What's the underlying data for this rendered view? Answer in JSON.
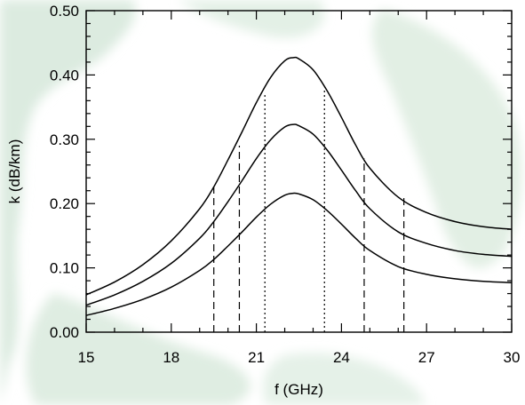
{
  "chart_data": {
    "type": "line",
    "xlabel": "f (GHz)",
    "ylabel": "k (dB/km)",
    "xlim": [
      15,
      30
    ],
    "ylim": [
      0.0,
      0.5
    ],
    "xticks": [
      15,
      18,
      21,
      24,
      27,
      30
    ],
    "xtick_labels": [
      "15",
      "18",
      "21",
      "24",
      "27",
      "30"
    ],
    "yticks": [
      0.0,
      0.1,
      0.2,
      0.3,
      0.4,
      0.5
    ],
    "ytick_labels": [
      "0.00",
      "0.10",
      "0.20",
      "0.30",
      "0.40",
      "0.50"
    ],
    "grid": false,
    "series": [
      {
        "x": [
          15,
          16,
          17,
          18,
          19,
          19.5,
          20,
          20.5,
          21,
          21.5,
          22,
          22.3,
          22.5,
          23,
          23.5,
          24,
          24.5,
          25,
          26,
          27,
          28,
          29,
          30
        ],
        "values": [
          0.058,
          0.078,
          0.105,
          0.142,
          0.192,
          0.226,
          0.268,
          0.312,
          0.357,
          0.396,
          0.422,
          0.427,
          0.425,
          0.408,
          0.375,
          0.334,
          0.291,
          0.255,
          0.21,
          0.186,
          0.172,
          0.164,
          0.16
        ]
      },
      {
        "x": [
          15,
          16,
          17,
          18,
          19,
          19.5,
          20,
          20.5,
          21,
          21.5,
          22,
          22.3,
          22.5,
          23,
          23.5,
          24,
          24.5,
          25,
          26,
          27,
          28,
          29,
          30
        ],
        "values": [
          0.042,
          0.058,
          0.079,
          0.107,
          0.146,
          0.172,
          0.203,
          0.236,
          0.27,
          0.299,
          0.319,
          0.323,
          0.321,
          0.308,
          0.283,
          0.252,
          0.22,
          0.192,
          0.156,
          0.138,
          0.127,
          0.121,
          0.118
        ]
      },
      {
        "x": [
          15,
          16,
          17,
          18,
          19,
          19.5,
          20,
          20.5,
          21,
          21.5,
          22,
          22.3,
          22.5,
          23,
          23.5,
          24,
          24.5,
          25,
          26,
          27,
          28,
          29,
          30
        ],
        "values": [
          0.026,
          0.037,
          0.051,
          0.07,
          0.096,
          0.113,
          0.134,
          0.156,
          0.179,
          0.199,
          0.213,
          0.216,
          0.215,
          0.206,
          0.189,
          0.168,
          0.146,
          0.127,
          0.102,
          0.09,
          0.083,
          0.079,
          0.077
        ]
      }
    ],
    "vertical_markers": [
      {
        "x": 19.5,
        "top": 0.226,
        "style": "dashed"
      },
      {
        "x": 20.4,
        "top": 0.29,
        "style": "dashed"
      },
      {
        "x": 21.3,
        "top": 0.37,
        "style": "dotted"
      },
      {
        "x": 23.4,
        "top": 0.38,
        "style": "dotted"
      },
      {
        "x": 24.8,
        "top": 0.27,
        "style": "dashed"
      },
      {
        "x": 26.2,
        "top": 0.215,
        "style": "dashed"
      }
    ]
  }
}
